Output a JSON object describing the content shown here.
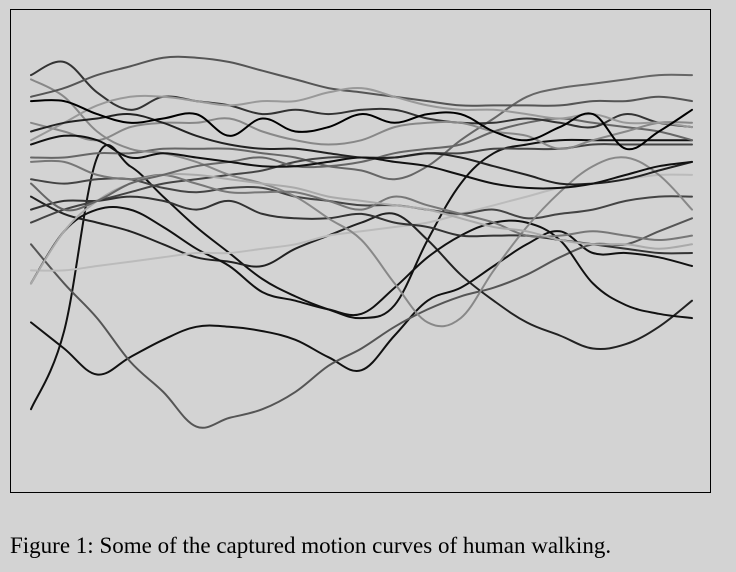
{
  "caption": "Figure 1: Some of the captured motion curves of human walking.",
  "colors": {
    "background": "#d3d3d3",
    "frame": "#000000"
  },
  "chart_data": {
    "type": "line",
    "title": "",
    "xlabel": "",
    "ylabel": "",
    "axes_visible": false,
    "grid": false,
    "legend": "none",
    "xlim": [
      0,
      100
    ],
    "ylim": [
      0,
      100
    ],
    "x": [
      0,
      5,
      10,
      15,
      20,
      25,
      30,
      35,
      40,
      45,
      50,
      55,
      60,
      65,
      70,
      75,
      80,
      85,
      90,
      95,
      100
    ],
    "series": [
      {
        "color": "#111111",
        "values": [
          14,
          32,
          72,
          70,
          63,
          56,
          50,
          44,
          40,
          37,
          35,
          38,
          53,
          66,
          73,
          75,
          76,
          76,
          76,
          76,
          76
        ]
      },
      {
        "color": "#111111",
        "values": [
          34,
          28,
          22,
          26,
          30,
          33,
          33,
          32,
          30,
          26,
          23,
          31,
          39,
          42,
          47,
          52,
          55,
          50,
          50,
          49,
          47
        ]
      },
      {
        "color": "#555555",
        "values": [
          52,
          43,
          35,
          25,
          18,
          10,
          12,
          14,
          18,
          24,
          28,
          33,
          37,
          40,
          42,
          45,
          49,
          52,
          52,
          55,
          58
        ]
      },
      {
        "color": "#222222",
        "values": [
          63,
          59,
          57,
          55,
          52,
          49,
          48,
          47,
          51,
          54,
          57,
          59,
          53,
          45,
          39,
          34,
          31,
          28,
          29,
          33,
          39
        ]
      },
      {
        "color": "#111111",
        "values": [
          43,
          55,
          60,
          60,
          56,
          51,
          47,
          41,
          39,
          37,
          36,
          42,
          49,
          54,
          57,
          57,
          53,
          43,
          38,
          36,
          35
        ]
      },
      {
        "color": "#666666",
        "values": [
          72,
          72,
          73,
          73,
          74,
          74,
          74,
          73,
          72,
          70,
          69,
          67,
          70,
          76,
          81,
          86,
          88,
          89,
          90,
          91,
          91
        ]
      },
      {
        "color": "#444444",
        "values": [
          57,
          60,
          62,
          64,
          66,
          67,
          68,
          69,
          71,
          72,
          72,
          72,
          73,
          73,
          74,
          74,
          74,
          75,
          75,
          75,
          75
        ]
      },
      {
        "color": "#bbbbbb",
        "values": [
          46,
          46,
          47,
          48,
          49,
          50,
          50,
          51,
          52,
          54,
          55,
          56,
          57,
          59,
          61,
          63,
          65,
          66,
          67,
          68,
          68
        ]
      },
      {
        "color": "#333333",
        "values": [
          60,
          62,
          62,
          63,
          62,
          60,
          62,
          59,
          58,
          58,
          59,
          57,
          56,
          54,
          54,
          54,
          53,
          52,
          51,
          50,
          50
        ]
      },
      {
        "color": "#444444",
        "values": [
          67,
          66,
          67,
          67,
          65,
          64,
          65,
          65,
          63,
          62,
          61,
          61,
          60,
          59,
          60,
          58,
          59,
          60,
          62,
          63,
          63
        ]
      },
      {
        "color": "#888888",
        "values": [
          90,
          86,
          78,
          74,
          73,
          71,
          68,
          66,
          63,
          58,
          53,
          43,
          34,
          35,
          46,
          56,
          64,
          70,
          72,
          68,
          60
        ]
      },
      {
        "color": "#777777",
        "values": [
          71,
          71,
          68,
          67,
          68,
          66,
          64,
          64,
          64,
          62,
          60,
          63,
          61,
          59,
          57,
          54,
          54,
          55,
          54,
          53,
          54
        ]
      },
      {
        "color": "#aaaaaa",
        "values": [
          43,
          55,
          62,
          66,
          68,
          68,
          67,
          66,
          65,
          63,
          62,
          61,
          60,
          58,
          56,
          55,
          53,
          52,
          52,
          51,
          52
        ]
      },
      {
        "color": "#666666",
        "values": [
          66,
          60,
          62,
          66,
          68,
          70,
          71,
          72,
          70,
          70,
          71,
          73,
          74,
          75,
          78,
          80,
          81,
          80,
          79,
          78,
          76
        ]
      },
      {
        "color": "#333333",
        "values": [
          91,
          94,
          87,
          83,
          86,
          85,
          84,
          82,
          83,
          82,
          83,
          83,
          81,
          80,
          80,
          81,
          80,
          79,
          82,
          80,
          79
        ]
      },
      {
        "color": "#555555",
        "values": [
          86,
          88,
          91,
          93,
          95,
          95,
          94,
          92,
          90,
          88,
          87,
          86,
          85,
          84,
          84,
          84,
          84,
          85,
          85,
          86,
          85
        ]
      },
      {
        "color": "#888888",
        "values": [
          80,
          78,
          76,
          79,
          80,
          80,
          81,
          78,
          76,
          75,
          76,
          79,
          80,
          80,
          78,
          77,
          74,
          76,
          78,
          80,
          80
        ]
      },
      {
        "color": "#999999",
        "values": [
          76,
          80,
          84,
          86,
          86,
          85,
          84,
          85,
          85,
          87,
          88,
          86,
          84,
          83,
          83,
          82,
          81,
          82,
          80,
          80,
          79
        ]
      },
      {
        "color": "#222222",
        "values": [
          78,
          80,
          81,
          82,
          80,
          77,
          75,
          74,
          74,
          73,
          72,
          72,
          73,
          72,
          70,
          68,
          66,
          66,
          67,
          69,
          71
        ]
      },
      {
        "color": "#111111",
        "values": [
          75,
          77,
          76,
          72,
          73,
          72,
          71,
          70,
          70,
          71,
          72,
          71,
          70,
          68,
          66,
          65,
          65,
          66,
          68,
          70,
          71
        ]
      },
      {
        "color": "#000000",
        "values": [
          85,
          85,
          82,
          80,
          81,
          82,
          77,
          81,
          78,
          79,
          82,
          80,
          82,
          82,
          78,
          76,
          79,
          82,
          74,
          78,
          83
        ]
      }
    ]
  }
}
